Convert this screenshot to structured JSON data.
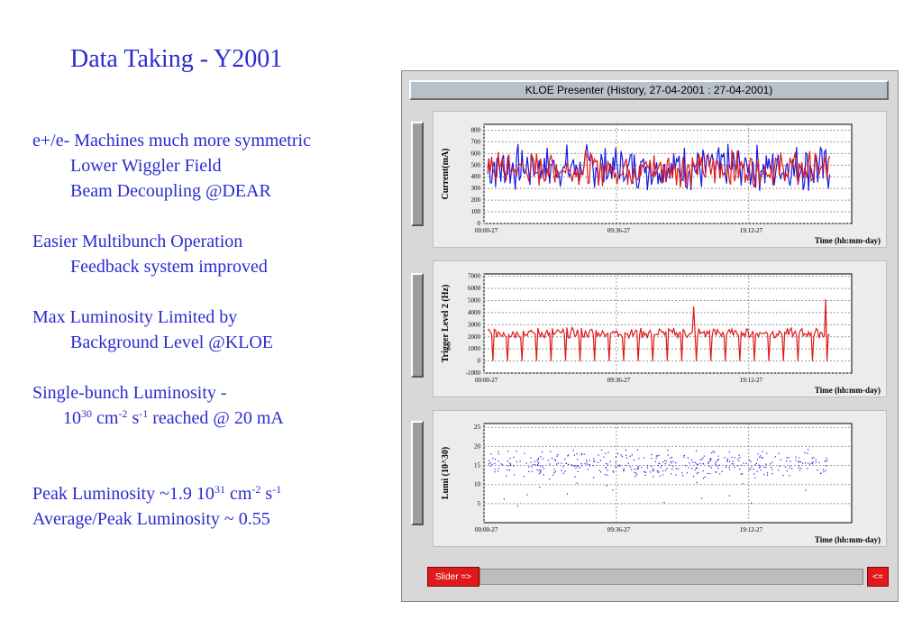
{
  "slide": {
    "title": "Data Taking - Y2001",
    "bullets": {
      "b1": "e+/e- Machines much more symmetric",
      "b1a": "Lower Wiggler Field",
      "b1b": "Beam Decoupling @DEAR",
      "b2": "Easier  Multibunch Operation",
      "b2a": "Feedback system improved",
      "b3": "Max Luminosity Limited by",
      "b3a": "Background Level @KLOE",
      "b4": "Single-bunch Luminosity -",
      "b4a_base": "10",
      "b4a_exp1": "30",
      "b4a_mid": " cm",
      "b4a_exp2": "-2",
      "b4a_s": " s",
      "b4a_exp3": "-1",
      "b4a_tail": " reached @ 20 mA",
      "b5_pre": "Peak Luminosity ~1.9 10",
      "b5_exp1": "31",
      "b5_mid": " cm",
      "b5_exp2": "-2",
      "b5_s": " s",
      "b5_exp3": "-1",
      "b6": "Average/Peak Luminosity  ~ 0.55"
    }
  },
  "presenter": {
    "title": "KLOE Presenter (History, 27-04-2001 : 27-04-2001)",
    "slider_label": "Slider =>",
    "end_label": "<=",
    "colors": {
      "red": "#e01a1a",
      "blue": "#1a1ae0",
      "panel": "#ececec"
    }
  },
  "chart_data": [
    {
      "type": "line",
      "ylabel": "Current(mA)",
      "xlabel": "Time (hh:mm-day)",
      "x_ticks": [
        "00:00-27",
        "09:36-27",
        "19:12-27"
      ],
      "y_ticks": [
        "0",
        "100",
        "200",
        "300",
        "400",
        "500",
        "600",
        "700",
        "800"
      ],
      "ylim": [
        0,
        850
      ],
      "series": [
        {
          "color": "#1a1ae0",
          "mean": 480,
          "amp": 150
        },
        {
          "color": "#e01a1a",
          "mean": 470,
          "amp": 120
        }
      ],
      "grid": true
    },
    {
      "type": "line",
      "ylabel": "Trigger Level 2 (Hz)",
      "xlabel": "Time (hh:mm-day)",
      "x_ticks": [
        "00:00-27",
        "09:36-27",
        "19:12-27"
      ],
      "y_ticks": [
        "-1000",
        "0",
        "1000",
        "2000",
        "3000",
        "4000",
        "5000",
        "6000",
        "7000"
      ],
      "ylim": [
        -1000,
        7200
      ],
      "series": [
        {
          "color": "#e01a1a",
          "mean": 2300,
          "amp": 350
        }
      ],
      "dropouts": 24,
      "spikes": [
        {
          "x": 0.57,
          "value": 4500
        },
        {
          "x": 0.93,
          "value": 5100
        }
      ],
      "grid": true
    },
    {
      "type": "scatter",
      "ylabel": "Lumi (10^30)",
      "xlabel": "Time (hh:mm-day)",
      "x_ticks": [
        "00:00-27",
        "09:36-27",
        "19:12-27"
      ],
      "y_ticks": [
        "5",
        "10",
        "15",
        "20",
        "25"
      ],
      "ylim": [
        0,
        26
      ],
      "series": [
        {
          "color": "#1a1ae0",
          "mean": 15.5,
          "spread": 2.2
        }
      ],
      "grid": true
    }
  ]
}
